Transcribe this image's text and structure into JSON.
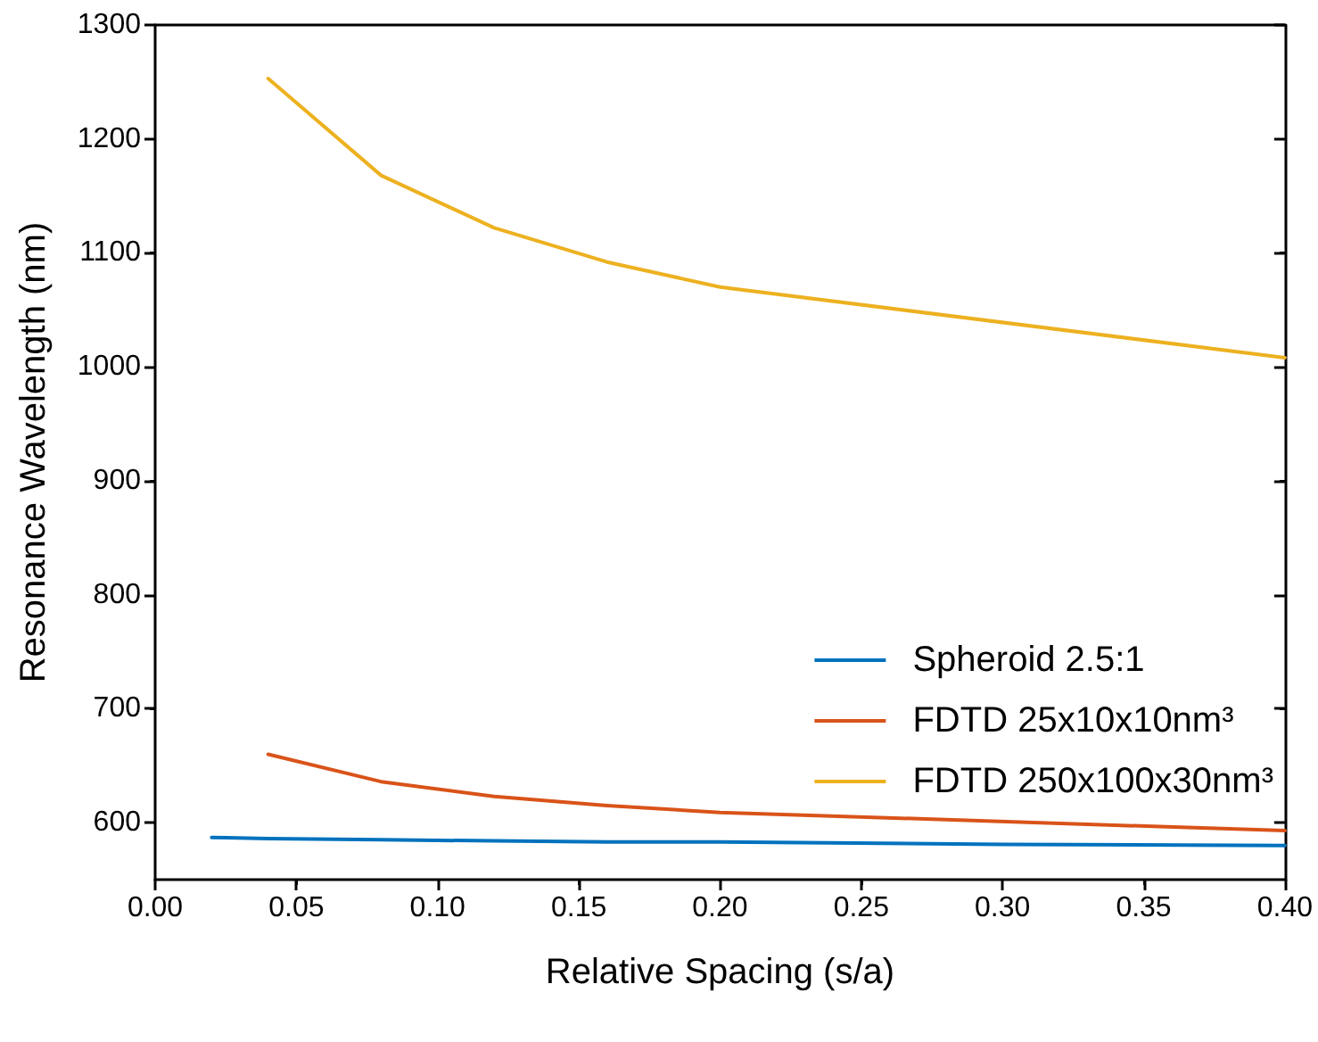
{
  "chart_data": {
    "type": "line",
    "xlabel": "Relative Spacing (s/a)",
    "ylabel": "Resonance Wavelength (nm)",
    "series": [
      {
        "name": "Spheroid 2.5:1",
        "color": "#0072bd",
        "x": [
          0.02,
          0.04,
          0.08,
          0.12,
          0.16,
          0.2,
          0.3,
          0.4
        ],
        "values": [
          587,
          586,
          585,
          584,
          583,
          583,
          581,
          580
        ]
      },
      {
        "name": "FDTD 25x10x10nm³",
        "color": "#d95319",
        "x": [
          0.04,
          0.08,
          0.12,
          0.16,
          0.2,
          0.4
        ],
        "values": [
          660,
          636,
          623,
          615,
          609,
          593
        ]
      },
      {
        "name": "FDTD 250x100x30nm³",
        "color": "#edb120",
        "x": [
          0.04,
          0.08,
          0.12,
          0.16,
          0.2,
          0.4
        ],
        "values": [
          1253,
          1168,
          1122,
          1092,
          1070,
          1008
        ]
      }
    ],
    "xlim": [
      0,
      0.4
    ],
    "xticks": [
      {
        "value": 0,
        "label": "0.00"
      },
      {
        "value": 0.05,
        "label": "0.05"
      },
      {
        "value": 0.1,
        "label": "0.10"
      },
      {
        "value": 0.15,
        "label": "0.15"
      },
      {
        "value": 0.2,
        "label": "0.20"
      },
      {
        "value": 0.25,
        "label": "0.25"
      },
      {
        "value": 0.3,
        "label": "0.30"
      },
      {
        "value": 0.35,
        "label": "0.35"
      },
      {
        "value": 0.4,
        "label": "0.40"
      }
    ],
    "ylim": [
      550,
      1300
    ],
    "yticks": [
      600,
      700,
      800,
      900,
      1000,
      1100,
      1200,
      1300
    ],
    "grid": false,
    "legend": "right",
    "marker": "none",
    "line_style": "solid"
  }
}
